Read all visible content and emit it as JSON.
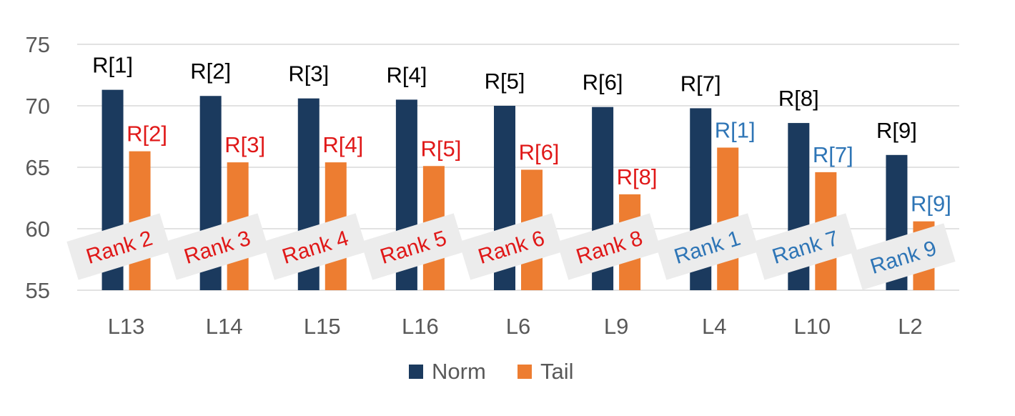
{
  "chart_data": {
    "type": "bar",
    "title": "",
    "xlabel": "",
    "ylabel": "",
    "ylim": [
      55,
      75
    ],
    "yticks": [
      55,
      60,
      65,
      70,
      75
    ],
    "grid": true,
    "legend_position": "bottom",
    "categories": [
      "L13",
      "L14",
      "L15",
      "L16",
      "L6",
      "L9",
      "L4",
      "L10",
      "L2"
    ],
    "series": [
      {
        "name": "Norm",
        "color": "#1b3a5e",
        "values": [
          71.3,
          70.8,
          70.6,
          70.5,
          70.0,
          69.9,
          69.8,
          68.6,
          66.0
        ],
        "labels": [
          "R[1]",
          "R[2]",
          "R[3]",
          "R[4]",
          "R[5]",
          "R[6]",
          "R[7]",
          "R[8]",
          "R[9]"
        ],
        "label_color": "#000000"
      },
      {
        "name": "Tail",
        "color": "#ed7d31",
        "values": [
          66.3,
          65.4,
          65.4,
          65.1,
          64.8,
          62.8,
          66.6,
          64.6,
          60.6
        ],
        "labels": [
          "R[2]",
          "R[3]",
          "R[4]",
          "R[5]",
          "R[6]",
          "R[8]",
          "R[1]",
          "R[7]",
          "R[9]"
        ],
        "label_colors": [
          "#e01818",
          "#e01818",
          "#e01818",
          "#e01818",
          "#e01818",
          "#e01818",
          "#2e75b6",
          "#2e75b6",
          "#2e75b6"
        ]
      }
    ],
    "rank_annotations": [
      {
        "text": "Rank 2",
        "color": "#e01818"
      },
      {
        "text": "Rank 3",
        "color": "#e01818"
      },
      {
        "text": "Rank 4",
        "color": "#e01818"
      },
      {
        "text": "Rank 5",
        "color": "#e01818"
      },
      {
        "text": "Rank 6",
        "color": "#e01818"
      },
      {
        "text": "Rank 8",
        "color": "#e01818"
      },
      {
        "text": "Rank 1",
        "color": "#2e75b6"
      },
      {
        "text": "Rank 7",
        "color": "#2e75b6"
      },
      {
        "text": "Rank 9",
        "color": "#2e75b6"
      }
    ],
    "colors": {
      "grid": "#d9d9d9",
      "axis_text": "#595959",
      "annotation_box": "#ececec"
    }
  }
}
